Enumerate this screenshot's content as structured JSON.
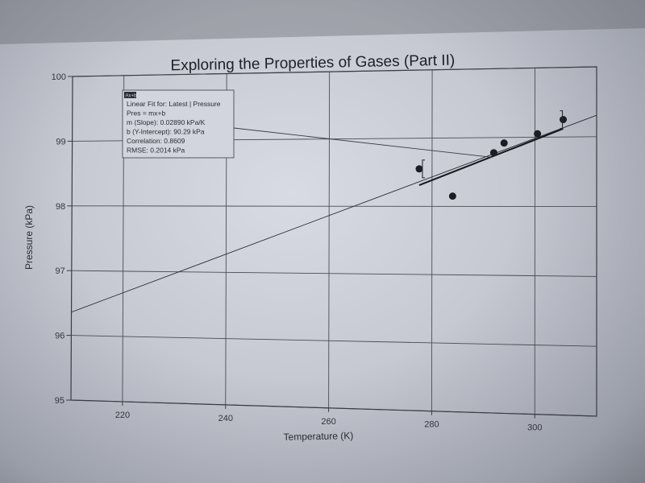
{
  "chart_data": {
    "type": "scatter",
    "title": "Exploring the Properties of Gases (Part II)",
    "xlabel": "Temperature (K)",
    "ylabel": "Pressure (kPa)",
    "xlim": [
      210,
      312
    ],
    "ylim": [
      95,
      100
    ],
    "xticks": [
      "220",
      "240",
      "260",
      "280",
      "300"
    ],
    "yticks": [
      "95",
      "96",
      "97",
      "98",
      "99",
      "100"
    ],
    "grid": true,
    "points": [
      {
        "x": 277.5,
        "y": 98.55,
        "error_bar": true
      },
      {
        "x": 284,
        "y": 98.15,
        "error_bar": false
      },
      {
        "x": 292,
        "y": 98.78,
        "error_bar": false
      },
      {
        "x": 294,
        "y": 98.92,
        "error_bar": false
      },
      {
        "x": 300.5,
        "y": 99.05,
        "error_bar": false
      },
      {
        "x": 305.5,
        "y": 99.25,
        "error_bar": true
      }
    ],
    "fit_line": {
      "slope": 0.0289,
      "intercept": 90.29
    },
    "fit_box": {
      "icon_label": "Ax+b",
      "lines": [
        "Linear Fit for: Latest | Pressure",
        "Pres = mx+b",
        "m (Slope): 0.02890 kPa/K",
        "b (Y-Intercept): 90.29 kPa",
        "Correlation: 0.8609",
        "RMSE: 0.2014 kPa"
      ]
    }
  }
}
